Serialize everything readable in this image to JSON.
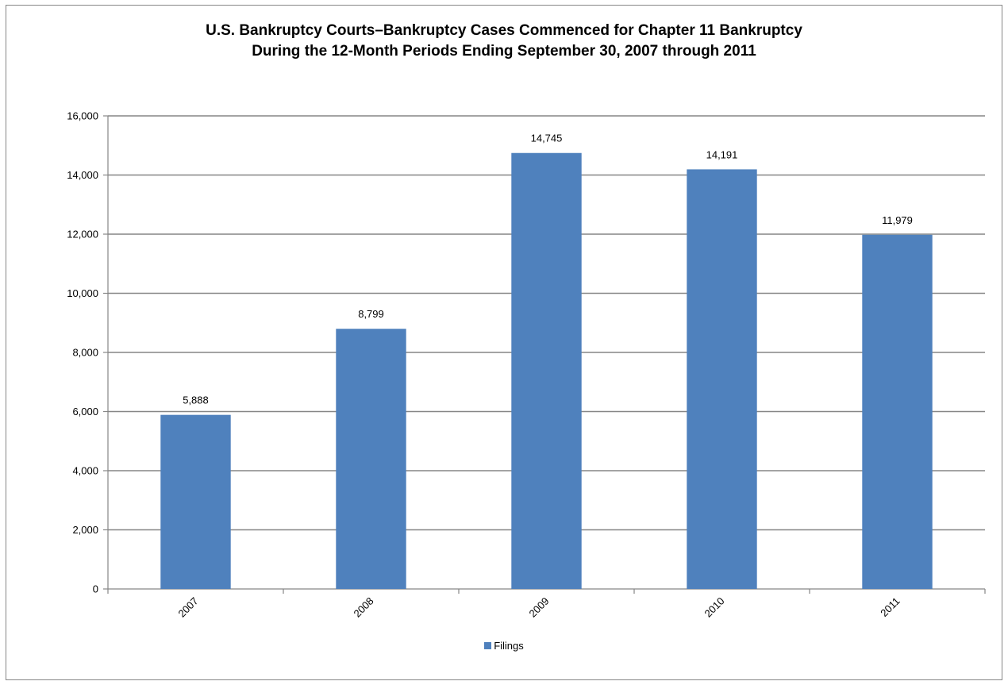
{
  "chart_data": {
    "type": "bar",
    "title": [
      "U.S. Bankruptcy Courts–Bankruptcy Cases Commenced for Chapter 11 Bankruptcy",
      "During the 12-Month Periods Ending September 30, 2007 through 2011"
    ],
    "xlabel": "",
    "ylabel": "",
    "categories": [
      "2007",
      "2008",
      "2009",
      "2010",
      "2011"
    ],
    "series": [
      {
        "name": "Filings",
        "values": [
          5888,
          8799,
          14745,
          14191,
          11979
        ],
        "value_labels": [
          "5,888",
          "8,799",
          "14,745",
          "14,191",
          "11,979"
        ],
        "color": "#4F81BD"
      }
    ],
    "ylim": [
      0,
      16000
    ],
    "yticks": [
      0,
      2000,
      4000,
      6000,
      8000,
      10000,
      12000,
      14000,
      16000
    ],
    "ytick_labels": [
      "0",
      "2,000",
      "4,000",
      "6,000",
      "8,000",
      "10,000",
      "12,000",
      "14,000",
      "16,000"
    ],
    "grid": true,
    "legend": "bottom",
    "colors": {
      "bar": "#4F81BD",
      "gridline": "#868686",
      "frame": "#868686"
    }
  }
}
